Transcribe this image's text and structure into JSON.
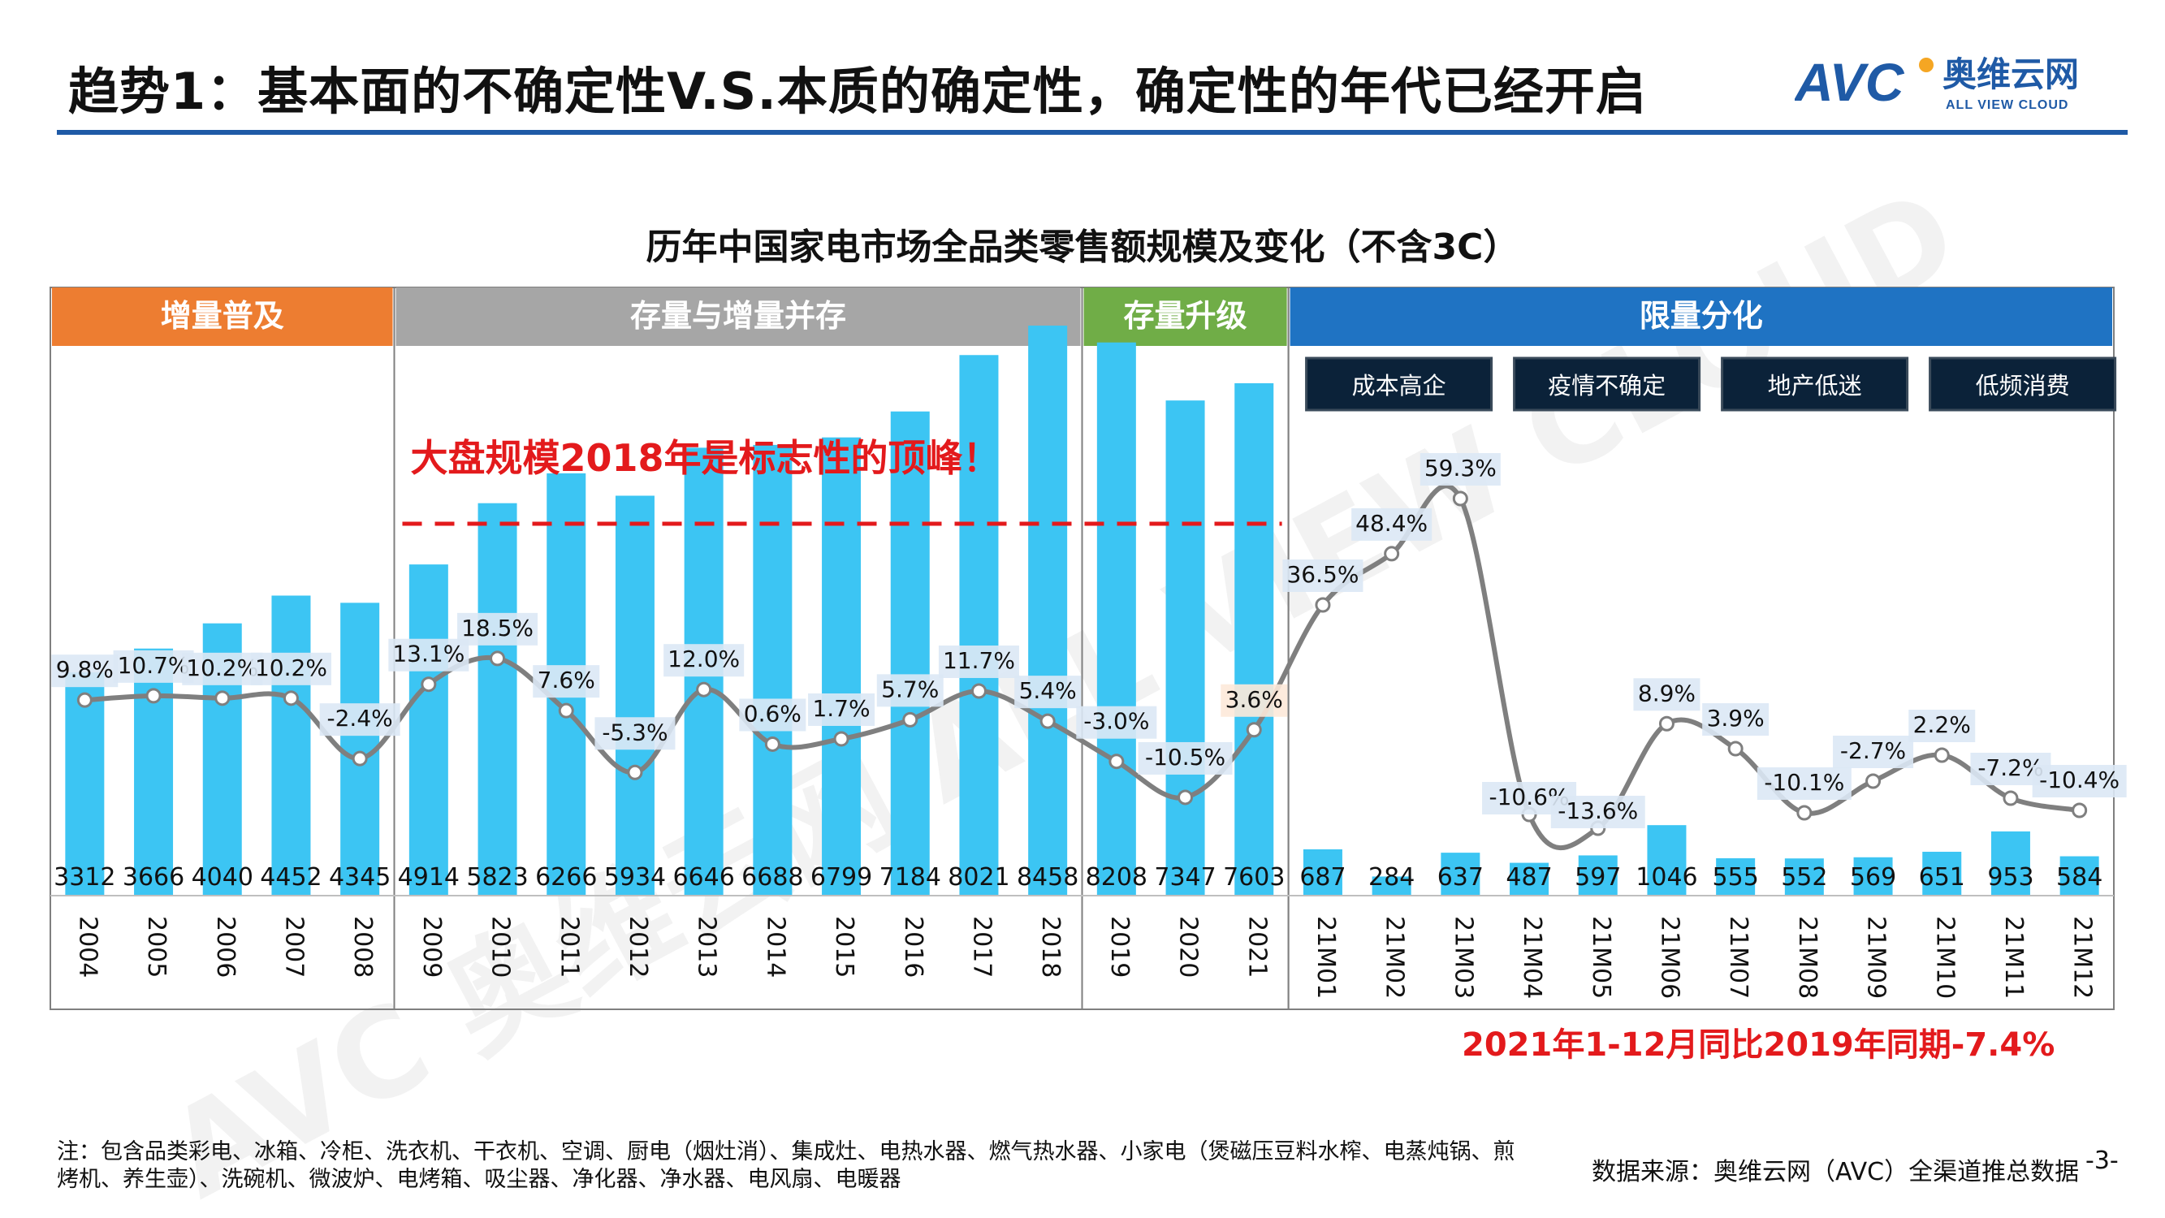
{
  "header": {
    "title": "趋势1：基本面的不确定性V.S.本质的确定性，确定性的年代已经开启",
    "logo_text": "奥维云网",
    "logo_subtext": "ALL VIEW CLOUD",
    "logo_mark": "AVC"
  },
  "colors": {
    "bar": "#3cc5f3",
    "line": "#7f7f7f",
    "accent_red": "#e31a1c",
    "orange": "#ed7d31",
    "gray": "#a6a6a6",
    "green": "#70ad47",
    "blue": "#1f73c3",
    "dark_badge": "#0b2239"
  },
  "chart_data": {
    "type": "bar",
    "title": "历年中国家电市场全品类零售额规模及变化（不含3C）",
    "categories": [
      "2004",
      "2005",
      "2006",
      "2007",
      "2008",
      "2009",
      "2010",
      "2011",
      "2012",
      "2013",
      "2014",
      "2015",
      "2016",
      "2017",
      "2018",
      "2019",
      "2020",
      "2021",
      "21M01",
      "21M02",
      "21M03",
      "21M04",
      "21M05",
      "21M06",
      "21M07",
      "21M08",
      "21M09",
      "21M10",
      "21M11",
      "21M12"
    ],
    "series": [
      {
        "type": "bar",
        "values": [
          3312,
          3666,
          4040,
          4452,
          4345,
          4914,
          5823,
          6266,
          5934,
          6646,
          6688,
          6799,
          7184,
          8021,
          8458,
          8208,
          7347,
          7603,
          687,
          284,
          637,
          487,
          597,
          1046,
          555,
          552,
          569,
          651,
          953,
          584
        ]
      },
      {
        "type": "line",
        "values": [
          9.8,
          10.7,
          10.2,
          10.2,
          -2.4,
          13.1,
          18.5,
          7.6,
          -5.3,
          12.0,
          0.6,
          1.7,
          5.7,
          11.7,
          5.4,
          -3.0,
          -10.5,
          3.6,
          36.5,
          48.4,
          59.3,
          -10.6,
          -13.6,
          8.9,
          3.9,
          -10.1,
          -2.7,
          2.2,
          -7.2,
          -10.4
        ],
        "labels": [
          "9.8%",
          "10.7%",
          "10.2%",
          "10.2%",
          "-2.4%",
          "13.1%",
          "18.5%",
          "7.6%",
          "-5.3%",
          "12.0%",
          "0.6%",
          "1.7%",
          "5.7%",
          "11.7%",
          "5.4%",
          "-3.0%",
          "-10.5%",
          "3.6%",
          "36.5%",
          "48.4%",
          "59.3%",
          "-10.6%",
          "-13.6%",
          "8.9%",
          "3.9%",
          "-10.1%",
          "-2.7%",
          "2.2%",
          "-7.2%",
          "-10.4%"
        ]
      }
    ],
    "phases": [
      {
        "label": "增量普及",
        "color": "#ed7d31"
      },
      {
        "label": "存量与增量并存",
        "color": "#a6a6a6"
      },
      {
        "label": "存量升级",
        "color": "#70ad47"
      },
      {
        "label": "限量分化",
        "color": "#1f73c3"
      }
    ],
    "factors": [
      "成本高企",
      "疫情不确定",
      "地产低迷",
      "低频消费"
    ],
    "annotation_peak": "大盘规模2018年是标志性的顶峰！",
    "annotation_2021": "2021年1-12月同比2019年同期-7.4%",
    "watermark": "AVC 奥维云网 ALL VIEW CLOUD"
  },
  "footer": {
    "note": "注：包含品类彩电、冰箱、冷柜、洗衣机、干衣机、空调、厨电（烟灶消）、集成灶、电热水器、燃气热水器、小家电（煲磁压豆料水榨、电蒸炖锅、煎烤机、养生壶）、洗碗机、微波炉、电烤箱、吸尘器、净化器、净水器、电风扇、电暖器",
    "source": "数据来源：奥维云网（AVC）全渠道推总数据",
    "page": "-3-"
  }
}
